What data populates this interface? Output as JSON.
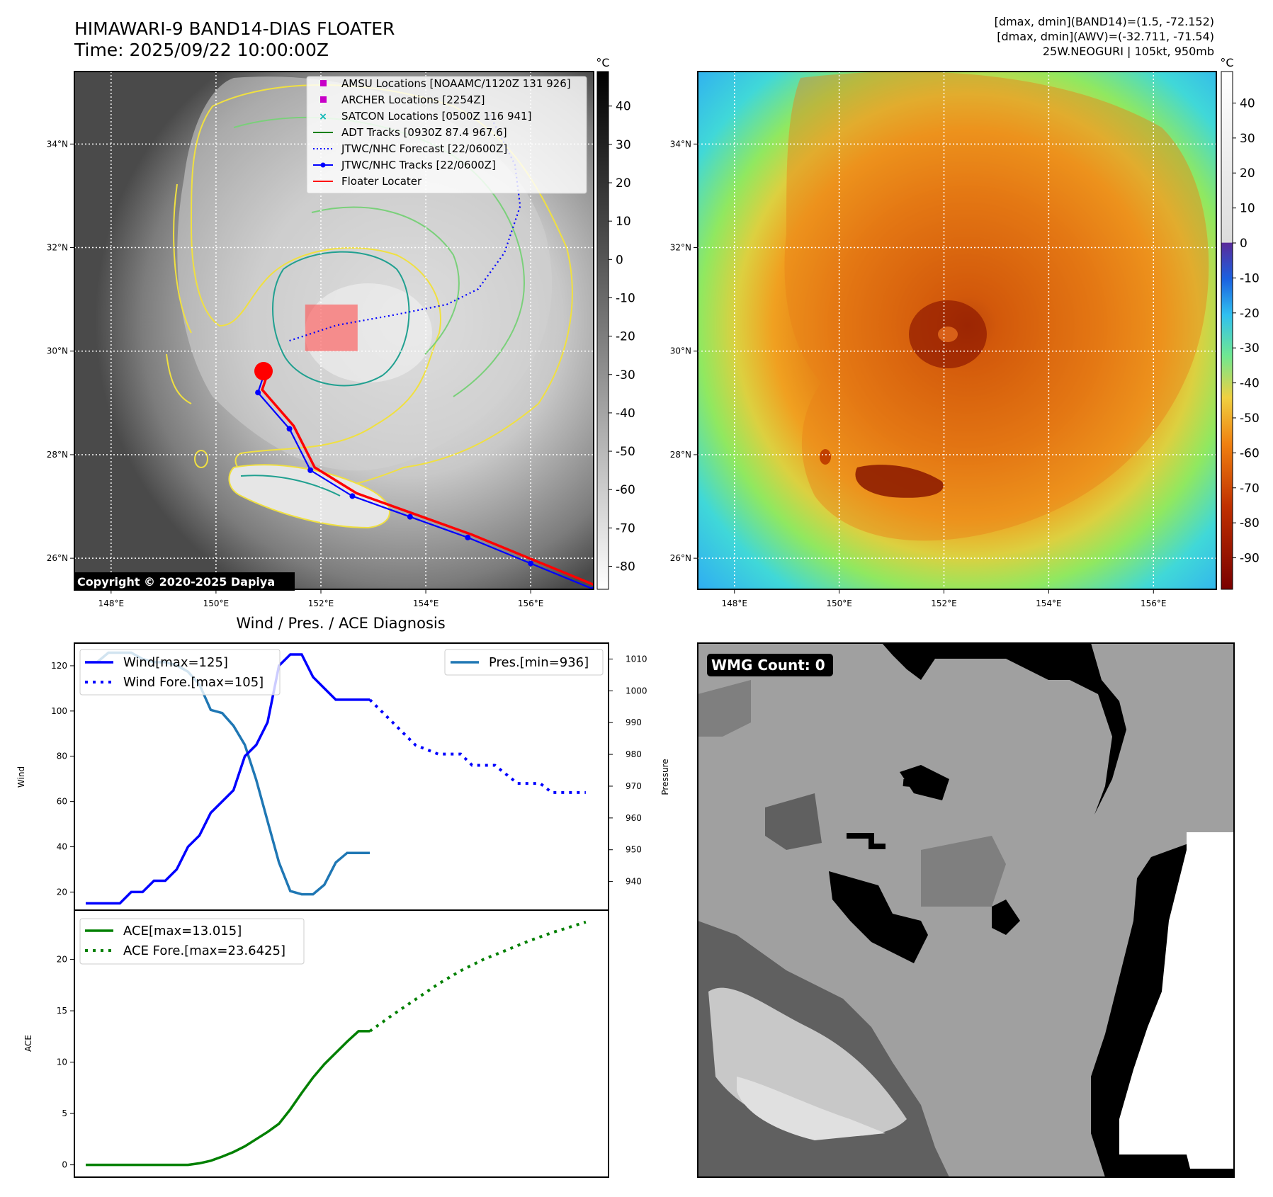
{
  "title": {
    "line1": "HIMAWARI-9 BAND14-DIAS FLOATER",
    "line2": "Time: 2025/09/22 10:00:00Z"
  },
  "info": {
    "line1": "[dmax, dmin](BAND14)=(1.5, -72.152)",
    "line2": "[dmax, dmin](AWV)=(-32.711, -71.54)",
    "line3": "25W.NEOGURI | 105kt, 950mb"
  },
  "copyright": "Copyright © 2020-2025 Dapiya",
  "colors": {
    "wind": "#0000ff",
    "pres": "#1f77b4",
    "ace": "#008000",
    "floater": "#ff0000",
    "amsu": "#c800c8",
    "satcon": "#00b4b4"
  },
  "map": {
    "lon_ticks": [
      148,
      150,
      152,
      154,
      156
    ],
    "lat_ticks": [
      26,
      28,
      30,
      32,
      34
    ],
    "lon_labels": [
      "148°E",
      "150°E",
      "152°E",
      "154°E",
      "156°E"
    ],
    "lat_labels": [
      "26°N",
      "28°N",
      "30°N",
      "32°N",
      "34°N"
    ],
    "lon_range": [
      147.3,
      157.2
    ],
    "lat_range": [
      25.4,
      35.4
    ],
    "legend": [
      {
        "label": "AMSU Locations [NOAAMC/1120Z 131 926]",
        "marker": "square",
        "color": "#c800c8"
      },
      {
        "label": "ARCHER Locations [2254Z]",
        "marker": "square",
        "color": "#c800c8"
      },
      {
        "label": "SATCON Locations [0500Z 116 941]",
        "marker": "x",
        "color": "#00b4b4"
      },
      {
        "label": "ADT Tracks [0930Z 87.4 967.6]",
        "marker": "line",
        "color": "#008000"
      },
      {
        "label": "JTWC/NHC Forecast [22/0600Z]",
        "marker": "dotted",
        "color": "#0000ff"
      },
      {
        "label": "JTWC/NHC Tracks [22/0600Z]",
        "marker": "line-dot",
        "color": "#0000ff"
      },
      {
        "label": "Floater Locater",
        "marker": "line",
        "color": "#ff0000"
      }
    ],
    "track": [
      [
        157.2,
        25.4
      ],
      [
        156.0,
        25.9
      ],
      [
        154.8,
        26.4
      ],
      [
        153.7,
        26.8
      ],
      [
        152.6,
        27.2
      ],
      [
        151.8,
        27.7
      ],
      [
        151.4,
        28.5
      ],
      [
        150.8,
        29.2
      ],
      [
        150.9,
        29.5
      ]
    ],
    "forecast": [
      [
        151.4,
        30.2
      ],
      [
        152.3,
        30.5
      ],
      [
        153.4,
        30.7
      ],
      [
        154.4,
        30.9
      ],
      [
        155.0,
        31.2
      ],
      [
        155.5,
        31.9
      ],
      [
        155.8,
        32.8
      ],
      [
        155.7,
        33.6
      ],
      [
        155.2,
        34.6
      ]
    ],
    "floater_box": {
      "lon": [
        151.7,
        152.7
      ],
      "lat": [
        30.0,
        30.9
      ]
    }
  },
  "colorbar_ir": {
    "unit": "°C",
    "ticks": [
      40,
      30,
      20,
      10,
      0,
      -10,
      -20,
      -30,
      -40,
      -50,
      -60,
      -70,
      -80
    ],
    "range": [
      49,
      -86
    ]
  },
  "colorbar_wv": {
    "unit": "°C",
    "ticks": [
      40,
      30,
      20,
      10,
      0,
      -10,
      -20,
      -30,
      -40,
      -50,
      -60,
      -70,
      -80,
      -90
    ],
    "range": [
      49,
      -99
    ]
  },
  "diag_title": "Wind / Pres. / ACE Diagnosis",
  "chart_data": [
    {
      "type": "line",
      "title": "Wind / Pres. / ACE Diagnosis",
      "ylabel": "Wind",
      "y2label": "Pressure",
      "ylim": [
        12,
        130
      ],
      "y2lim": [
        931,
        1015
      ],
      "yticks": [
        20,
        40,
        60,
        80,
        100,
        120
      ],
      "y2ticks": [
        940,
        950,
        960,
        970,
        980,
        990,
        1000,
        1010
      ],
      "legend_left": [
        "Wind[max=125]",
        "Wind Fore.[max=105]"
      ],
      "legend_right": [
        "Pres.[min=936]"
      ],
      "series": [
        {
          "name": "Wind[max=125]",
          "axis": "left",
          "style": "solid",
          "color": "#0000ff",
          "x": [
            0,
            1,
            2,
            3,
            4,
            5,
            6,
            7,
            8,
            9,
            10,
            11,
            12,
            13,
            14,
            15,
            16,
            17,
            18,
            19,
            20,
            21,
            22,
            23,
            24,
            25
          ],
          "values": [
            15,
            15,
            15,
            15,
            20,
            20,
            25,
            25,
            30,
            40,
            45,
            55,
            60,
            65,
            80,
            85,
            95,
            120,
            125,
            125,
            115,
            110,
            105,
            105,
            105,
            105
          ]
        },
        {
          "name": "Wind Fore.[max=105]",
          "axis": "left",
          "style": "dotted",
          "color": "#0000ff",
          "x": [
            25,
            26,
            27,
            28,
            29,
            30,
            31,
            32,
            33,
            34,
            35,
            36,
            37,
            38,
            39,
            40,
            41,
            42,
            43,
            44
          ],
          "values": [
            105,
            100,
            95,
            90,
            85,
            83,
            81,
            81,
            81,
            76,
            76,
            76,
            72,
            68,
            68,
            68,
            64,
            64,
            64,
            64
          ]
        },
        {
          "name": "Pres.[min=936]",
          "axis": "right",
          "style": "solid",
          "color": "#1f77b4",
          "x": [
            0,
            1,
            2,
            3,
            4,
            5,
            6,
            7,
            8,
            9,
            10,
            11,
            12,
            13,
            14,
            15,
            16,
            17,
            18,
            19,
            20,
            21,
            22,
            23,
            24,
            25
          ],
          "values": [
            1009,
            1009,
            1012,
            1012,
            1012,
            1010,
            1009,
            1009,
            1008,
            1006,
            1002,
            994,
            993,
            989,
            983,
            972,
            959,
            946,
            937,
            936,
            936,
            939,
            946,
            949,
            949,
            949
          ]
        }
      ]
    },
    {
      "type": "line",
      "ylabel": "ACE",
      "ylim": [
        -1.2,
        24.8
      ],
      "yticks": [
        0,
        5,
        10,
        15,
        20
      ],
      "legend": [
        "ACE[max=13.015]",
        "ACE Fore.[max=23.6425]"
      ],
      "series": [
        {
          "name": "ACE[max=13.015]",
          "style": "solid",
          "color": "#008000",
          "x": [
            0,
            3,
            6,
            9,
            10,
            11,
            12,
            13,
            14,
            15,
            16,
            17,
            18,
            19,
            20,
            21,
            22,
            23,
            24,
            25
          ],
          "values": [
            0,
            0,
            0,
            0,
            0.15,
            0.4,
            0.8,
            1.25,
            1.8,
            2.5,
            3.2,
            4.0,
            5.4,
            7.0,
            8.5,
            9.8,
            10.9,
            12.0,
            13.015,
            13.015
          ]
        },
        {
          "name": "ACE Fore.[max=23.6425]",
          "style": "dotted",
          "color": "#008000",
          "x": [
            25,
            27,
            29,
            31,
            33,
            35,
            37,
            39,
            41,
            44
          ],
          "values": [
            13.015,
            14.6,
            16.1,
            17.6,
            18.9,
            20.0,
            20.9,
            21.8,
            22.6,
            23.6425
          ]
        }
      ]
    }
  ],
  "wmg": {
    "label": "WMG Count: 0"
  }
}
